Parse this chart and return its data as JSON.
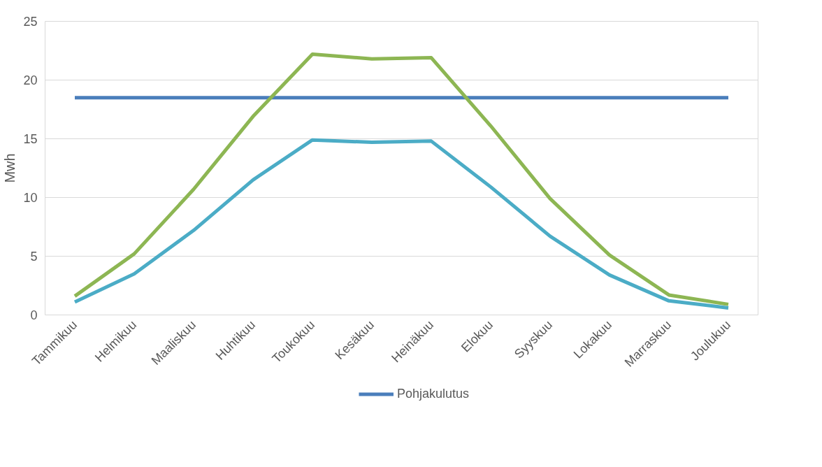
{
  "chart_data": {
    "type": "line",
    "ylabel": "Mwh",
    "categories": [
      "Tammikuu",
      "Helmikuu",
      "Maaliskuu",
      "Huhtikuu",
      "Toukokuu",
      "Kesäkuu",
      "Heinäkuu",
      "Elokuu",
      "Syyskuu",
      "Lokakuu",
      "Marraskuu",
      "Joulukuu"
    ],
    "series": [
      {
        "name": "Pohjakulutus",
        "color": "#4a7ebb",
        "values": [
          18.5,
          18.5,
          18.5,
          18.5,
          18.5,
          18.5,
          18.5,
          18.5,
          18.5,
          18.5,
          18.5,
          18.5
        ]
      },
      {
        "color": "#8db653",
        "values": [
          1.6,
          5.2,
          10.7,
          16.9,
          22.2,
          21.8,
          21.9,
          16.1,
          9.9,
          5.1,
          1.7,
          0.9
        ]
      },
      {
        "color": "#4bacc6",
        "values": [
          1.1,
          3.5,
          7.2,
          11.5,
          14.9,
          14.7,
          14.8,
          10.9,
          6.7,
          3.4,
          1.2,
          0.6
        ]
      }
    ],
    "ylim": [
      0,
      25
    ],
    "yticks": [
      0,
      5,
      10,
      15,
      20,
      25
    ],
    "grid": "y",
    "legend": "bottom",
    "marker": "none",
    "line_style": "solid"
  }
}
